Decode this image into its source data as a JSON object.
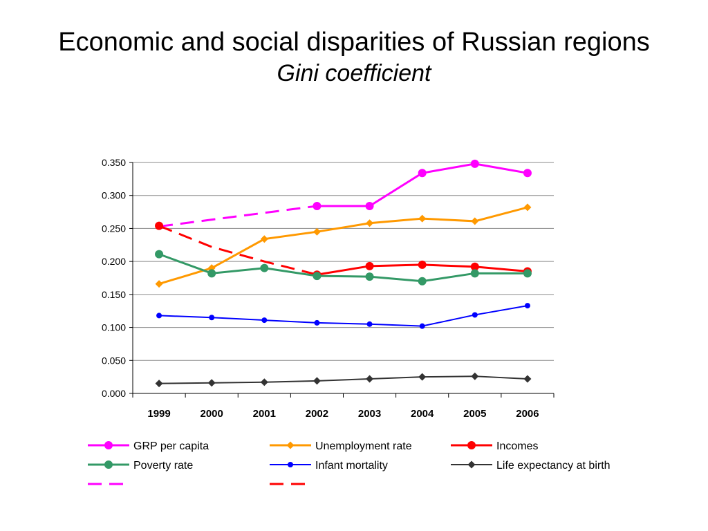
{
  "slide": {
    "title": "Economic and social disparities of Russian regions",
    "subtitle": "Gini coefficient"
  },
  "chart_data": {
    "type": "line",
    "categories": [
      "1999",
      "2000",
      "2001",
      "2002",
      "2003",
      "2004",
      "2005",
      "2006"
    ],
    "ylim": [
      0,
      0.35
    ],
    "yticks": [
      "0.000",
      "0.050",
      "0.100",
      "0.150",
      "0.200",
      "0.250",
      "0.300",
      "0.350"
    ],
    "grid": true,
    "legend_position": "bottom",
    "series": [
      {
        "name": "GRP per capita",
        "color": "#FF00FF",
        "marker": "circle",
        "values": [
          null,
          null,
          null,
          0.284,
          0.284,
          0.334,
          0.348,
          0.334
        ]
      },
      {
        "name": "Unemployment rate",
        "color": "#FF9900",
        "marker": "diamond",
        "values": [
          0.166,
          0.19,
          0.234,
          0.245,
          0.258,
          0.265,
          0.261,
          0.282
        ]
      },
      {
        "name": "Incomes",
        "color": "#FF0000",
        "marker": "circle",
        "values": [
          0.254,
          null,
          null,
          0.18,
          0.193,
          0.195,
          0.192,
          0.185
        ]
      },
      {
        "name": "Poverty rate",
        "color": "#339966",
        "marker": "circle",
        "values": [
          0.211,
          0.182,
          0.19,
          0.178,
          0.177,
          0.17,
          0.182,
          0.182
        ]
      },
      {
        "name": "Infant mortality",
        "color": "#0000FF",
        "marker": "small-circle",
        "values": [
          0.118,
          0.115,
          0.111,
          0.107,
          0.105,
          0.102,
          0.119,
          0.133
        ]
      },
      {
        "name": "Life expectancy at birth",
        "color": "#333333",
        "marker": "diamond",
        "values": [
          0.015,
          0.016,
          0.017,
          0.019,
          0.022,
          0.025,
          0.026,
          0.022
        ]
      }
    ],
    "dashed_series": [
      {
        "color": "#FF00FF",
        "values": [
          0.253,
          null,
          null,
          0.284,
          null,
          null,
          null,
          null
        ]
      },
      {
        "color": "#FF0000",
        "values": [
          0.254,
          0.222,
          0.2,
          0.18,
          null,
          null,
          null,
          null
        ]
      }
    ]
  }
}
